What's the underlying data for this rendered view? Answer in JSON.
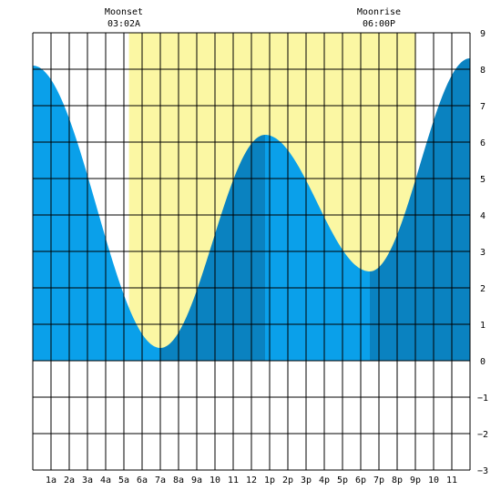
{
  "chart_data": {
    "type": "area",
    "xlim": [
      0,
      24
    ],
    "ylim": [
      -3,
      9
    ],
    "yticks": [
      -3,
      -2,
      -1,
      0,
      1,
      2,
      3,
      4,
      5,
      6,
      7,
      8,
      9
    ],
    "xtick_labels": [
      {
        "x": 1,
        "label": "1a"
      },
      {
        "x": 2,
        "label": "2a"
      },
      {
        "x": 3,
        "label": "3a"
      },
      {
        "x": 4,
        "label": "4a"
      },
      {
        "x": 5,
        "label": "5a"
      },
      {
        "x": 6,
        "label": "6a"
      },
      {
        "x": 7,
        "label": "7a"
      },
      {
        "x": 8,
        "label": "8a"
      },
      {
        "x": 9,
        "label": "9a"
      },
      {
        "x": 10,
        "label": "10"
      },
      {
        "x": 11,
        "label": "11"
      },
      {
        "x": 12,
        "label": "12"
      },
      {
        "x": 13,
        "label": "1p"
      },
      {
        "x": 14,
        "label": "2p"
      },
      {
        "x": 15,
        "label": "3p"
      },
      {
        "x": 16,
        "label": "4p"
      },
      {
        "x": 17,
        "label": "5p"
      },
      {
        "x": 18,
        "label": "6p"
      },
      {
        "x": 19,
        "label": "7p"
      },
      {
        "x": 20,
        "label": "8p"
      },
      {
        "x": 21,
        "label": "9p"
      },
      {
        "x": 22,
        "label": "10"
      },
      {
        "x": 23,
        "label": "11"
      }
    ],
    "grid": true,
    "daylight": [
      5.28,
      21.03
    ],
    "extremes": [
      {
        "t": 0.0,
        "h": 8.1
      },
      {
        "t": 7.0,
        "h": 0.35
      },
      {
        "t": 12.75,
        "h": 6.2
      },
      {
        "t": 18.5,
        "h": 2.45
      },
      {
        "t": 24.0,
        "h": 8.3
      }
    ],
    "shade_breaks": [
      7.0,
      12.75,
      18.5
    ],
    "colors": {
      "daylight": "#fbf7a3",
      "falling": "#0aa0ea",
      "rising": "#0a82c0",
      "grid": "#000000",
      "background": "#ffffff"
    },
    "annotations": [
      {
        "x": 5,
        "line1": "Moonset",
        "line2": "03:02A"
      },
      {
        "x": 19,
        "line1": "Moonrise",
        "line2": "06:00P"
      }
    ]
  }
}
